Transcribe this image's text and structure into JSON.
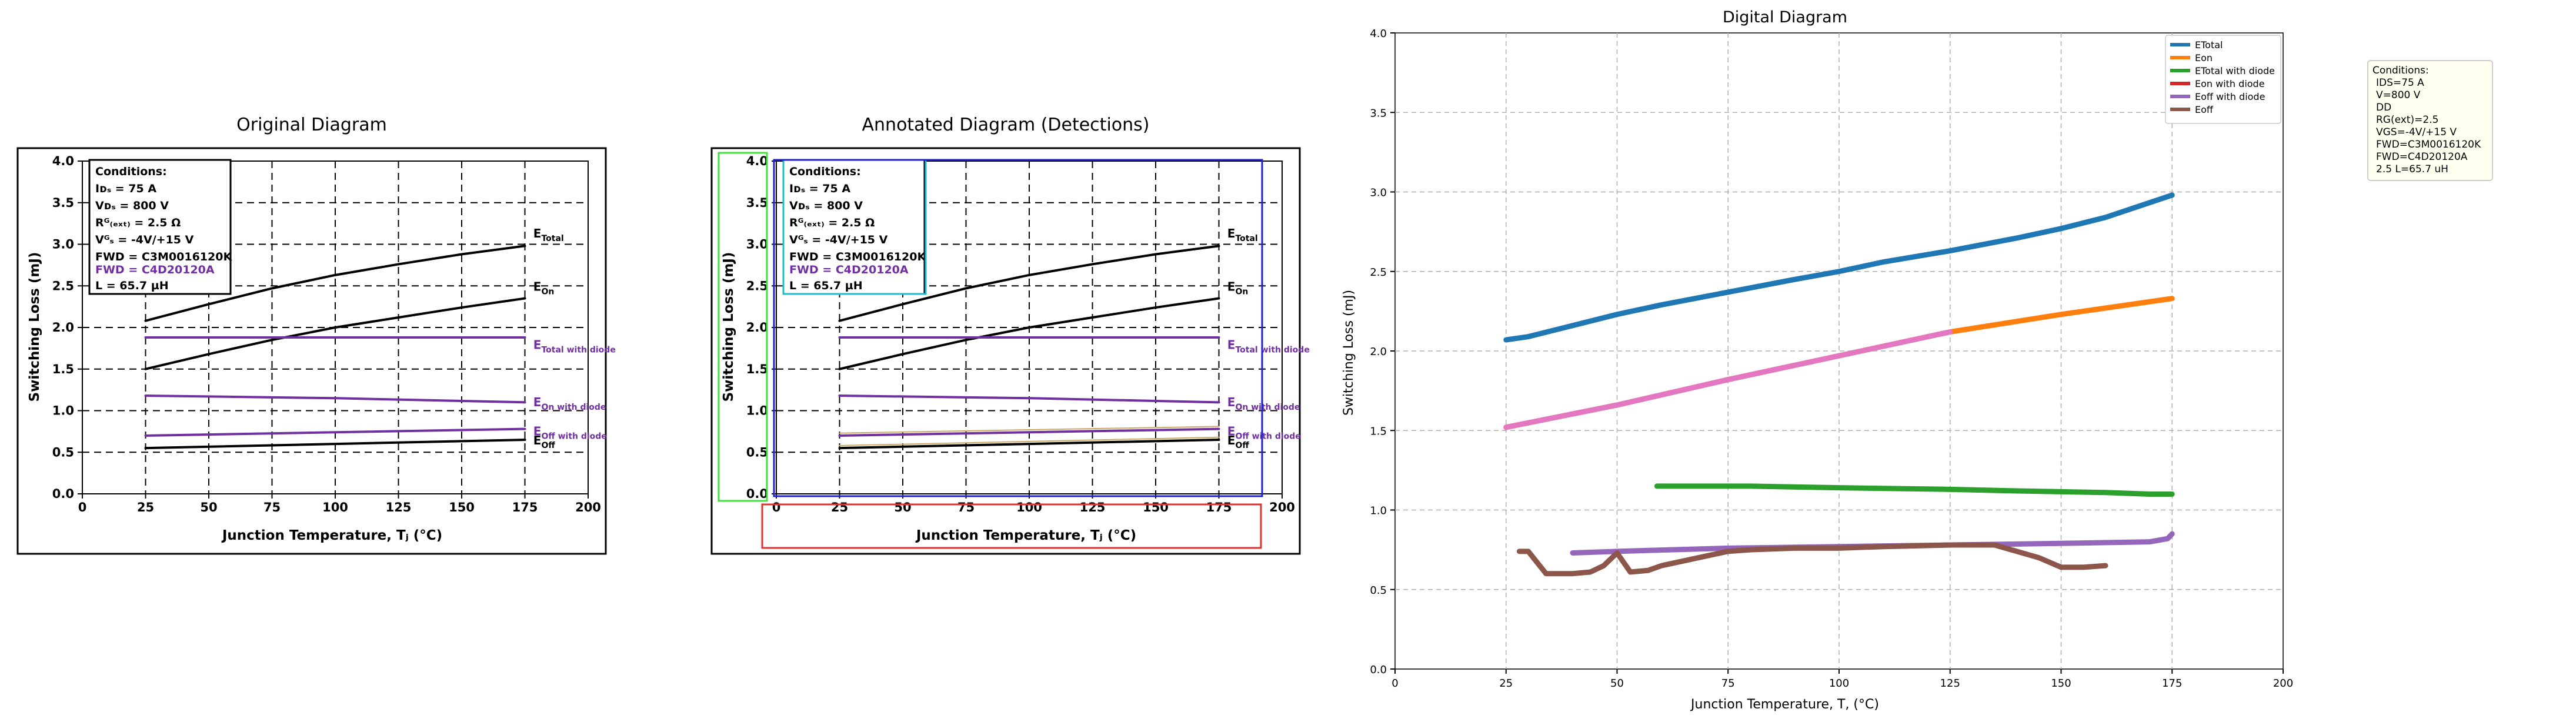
{
  "colors": {
    "black": "#000000",
    "purple": "#7030a0",
    "green_box": "#44dd44",
    "cyan_box": "#22bbcc",
    "blue_box": "#2222cc",
    "red_box": "#dd3333",
    "etotal": "#1f77b4",
    "eon": "#ff7f0e",
    "etotal_diode": "#2ca02c",
    "eon_diode": "#d62728",
    "eoff_diode": "#9467bd",
    "eoff": "#8c564b",
    "pink": "#e377c2"
  },
  "chart_data": [
    {
      "type": "line",
      "title": "Original Diagram",
      "xlabel": "Junction Temperature, Tⱼ (°C)",
      "ylabel": "Switching Loss (mJ)",
      "xlim": [
        0,
        200
      ],
      "ylim": [
        0,
        4
      ],
      "xticks": [
        "0",
        "25",
        "50",
        "75",
        "100",
        "125",
        "150",
        "175",
        "200"
      ],
      "yticks": [
        "0.0",
        "0.5",
        "1.0",
        "1.5",
        "2.0",
        "2.5",
        "3.0",
        "3.5",
        "4.0"
      ],
      "grid": true,
      "conditions": {
        "heading": "Conditions:",
        "lines": [
          "Iᴅₛ = 75 A",
          "Vᴅₛ = 800 V",
          "Rᴳ₍ₑₓₜ₎ = 2.5 Ω",
          "Vᴳₛ = -4V/+15 V",
          "FWD = C3M0016120K",
          "FWD = C4D20120A",
          "L = 65.7 µH"
        ]
      },
      "series": [
        {
          "name": "E_Total",
          "label": "E",
          "sub": "Total",
          "color": "black",
          "x": [
            25,
            50,
            75,
            100,
            125,
            150,
            175
          ],
          "y": [
            2.08,
            2.28,
            2.47,
            2.63,
            2.76,
            2.88,
            2.98
          ]
        },
        {
          "name": "E_On",
          "label": "E",
          "sub": "On",
          "color": "black",
          "x": [
            25,
            50,
            75,
            100,
            125,
            150,
            175
          ],
          "y": [
            1.5,
            1.68,
            1.85,
            2.0,
            2.12,
            2.24,
            2.35
          ]
        },
        {
          "name": "E_Total with diode",
          "label": "E",
          "sub": "Total with diode",
          "color": "purple",
          "x": [
            25,
            175
          ],
          "y": [
            1.88,
            1.88
          ]
        },
        {
          "name": "E_On with diode",
          "label": "E",
          "sub": "On with diode",
          "color": "purple",
          "x": [
            25,
            100,
            175
          ],
          "y": [
            1.18,
            1.15,
            1.1
          ]
        },
        {
          "name": "E_Off with diode",
          "label": "E",
          "sub": "Off with diode",
          "color": "purple",
          "x": [
            25,
            100,
            175
          ],
          "y": [
            0.7,
            0.74,
            0.78
          ]
        },
        {
          "name": "E_Off",
          "label": "E",
          "sub": "Off",
          "color": "black",
          "x": [
            25,
            100,
            175
          ],
          "y": [
            0.55,
            0.6,
            0.65
          ]
        }
      ]
    },
    {
      "type": "line",
      "title": "Annotated Diagram (Detections)",
      "xlabel": "Junction Temperature, Tⱼ (°C)",
      "ylabel": "Switching Loss (mJ)",
      "xlim": [
        0,
        200
      ],
      "ylim": [
        0,
        4
      ],
      "xticks": [
        "0",
        "25",
        "50",
        "75",
        "100",
        "125",
        "150",
        "175",
        "200"
      ],
      "yticks": [
        "0.0",
        "0.5",
        "1.0",
        "1.5",
        "2.0",
        "2.5",
        "3.0",
        "3.5",
        "4.0"
      ],
      "grid": true,
      "series": [
        {
          "name": "E_Total",
          "color": "black",
          "x": [
            25,
            50,
            75,
            100,
            125,
            150,
            175
          ],
          "y": [
            2.08,
            2.28,
            2.47,
            2.63,
            2.76,
            2.88,
            2.98
          ]
        },
        {
          "name": "E_On",
          "color": "black",
          "x": [
            25,
            50,
            75,
            100,
            125,
            150,
            175
          ],
          "y": [
            1.5,
            1.68,
            1.85,
            2.0,
            2.12,
            2.24,
            2.35
          ]
        },
        {
          "name": "E_Total with diode",
          "color": "purple",
          "x": [
            25,
            175
          ],
          "y": [
            1.88,
            1.88
          ]
        },
        {
          "name": "E_On with diode",
          "color": "purple",
          "x": [
            25,
            100,
            175
          ],
          "y": [
            1.18,
            1.15,
            1.1
          ]
        },
        {
          "name": "E_Off with diode",
          "color": "purple",
          "x": [
            25,
            100,
            175
          ],
          "y": [
            0.7,
            0.74,
            0.78
          ]
        },
        {
          "name": "E_Off",
          "color": "black",
          "x": [
            25,
            100,
            175
          ],
          "y": [
            0.55,
            0.6,
            0.65
          ]
        }
      ],
      "detection_boxes": [
        "green_box",
        "cyan_box",
        "blue_box",
        "red_box"
      ]
    },
    {
      "type": "line",
      "title": "Digital Diagram",
      "xlabel": "Junction Temperature, T, (°C)",
      "ylabel": "Switching Loss (mJ)",
      "xlim": [
        0,
        200
      ],
      "ylim": [
        0,
        4
      ],
      "xticks": [
        "0",
        "25",
        "50",
        "75",
        "100",
        "125",
        "150",
        "175",
        "200"
      ],
      "yticks": [
        "0.0",
        "0.5",
        "1.0",
        "1.5",
        "2.0",
        "2.5",
        "3.0",
        "3.5",
        "4.0"
      ],
      "grid": true,
      "legend_position": "top-right",
      "conditions_text": [
        "Conditions:",
        "IDS=75 A",
        "V=800 V",
        "DD",
        "RG(ext)=2.5",
        "VGS=-4V/+15 V",
        "FWD=C3M0016120K",
        "FWD=C4D20120A",
        "2.5 L=65.7 uH"
      ],
      "series": [
        {
          "name": "ETotal",
          "color": "etotal",
          "x": [
            25,
            30,
            40,
            50,
            60,
            75,
            90,
            100,
            110,
            125,
            140,
            150,
            160,
            175
          ],
          "y": [
            2.07,
            2.09,
            2.16,
            2.23,
            2.29,
            2.37,
            2.45,
            2.5,
            2.56,
            2.63,
            2.71,
            2.77,
            2.84,
            2.98
          ]
        },
        {
          "name": "Eon",
          "color": "eon",
          "x": [
            25,
            50,
            75,
            100,
            125,
            150,
            175
          ],
          "y": [
            1.52,
            1.66,
            1.82,
            1.97,
            2.12,
            2.23,
            2.33
          ]
        },
        {
          "name": "ETotal with diode",
          "color": "etotal_diode",
          "x": [
            59,
            80,
            100,
            125,
            140,
            160,
            170,
            175
          ],
          "y": [
            1.15,
            1.15,
            1.14,
            1.13,
            1.12,
            1.11,
            1.1,
            1.1
          ]
        },
        {
          "name": "Eon with diode",
          "color": "eon_diode",
          "x": [],
          "y": []
        },
        {
          "name": "Eoff with diode",
          "color": "eoff_diode",
          "x": [
            40,
            50,
            75,
            100,
            125,
            150,
            170,
            174,
            175
          ],
          "y": [
            0.73,
            0.74,
            0.76,
            0.77,
            0.78,
            0.79,
            0.8,
            0.82,
            0.85
          ]
        },
        {
          "name": "Eoff",
          "color": "eoff",
          "x": [
            28,
            30,
            34,
            40,
            44,
            47,
            50,
            53,
            57,
            60,
            70,
            75,
            80,
            90,
            100,
            110,
            125,
            135,
            140,
            145,
            150,
            155,
            160
          ],
          "y": [
            0.74,
            0.74,
            0.6,
            0.6,
            0.61,
            0.65,
            0.73,
            0.61,
            0.62,
            0.65,
            0.71,
            0.74,
            0.75,
            0.76,
            0.76,
            0.77,
            0.78,
            0.78,
            0.74,
            0.7,
            0.64,
            0.64,
            0.65
          ]
        }
      ],
      "overlay": {
        "color": "pink",
        "x": [
          25,
          50,
          75,
          100,
          125
        ],
        "y": [
          1.52,
          1.66,
          1.82,
          1.97,
          2.12
        ]
      }
    }
  ]
}
